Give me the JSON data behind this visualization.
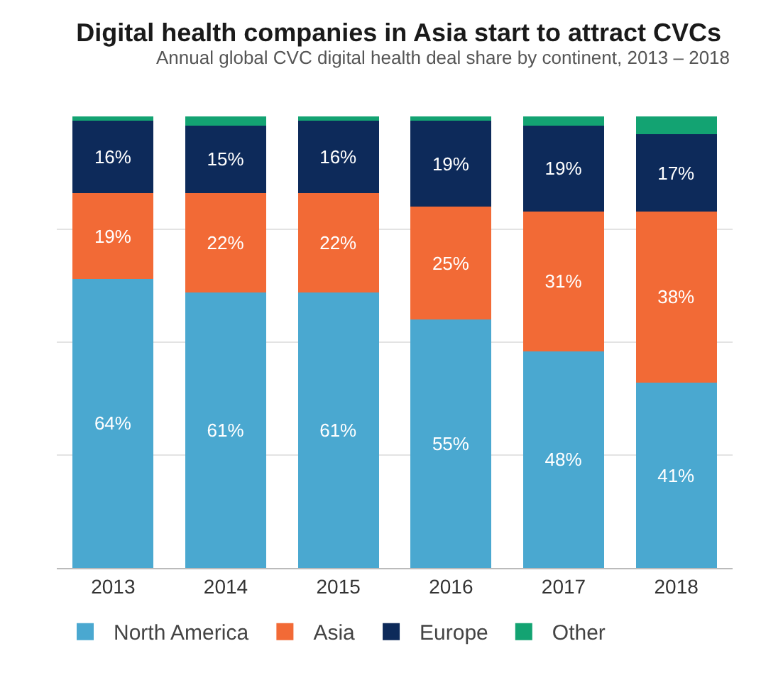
{
  "chart_data": {
    "type": "bar",
    "title": "Digital health companies in Asia start to attract CVCs",
    "subtitle": "Annual global CVC digital health deal share by continent, 2013 – 2018",
    "categories": [
      "2013",
      "2014",
      "2015",
      "2016",
      "2017",
      "2018"
    ],
    "stacked": true,
    "ylim": [
      0,
      100
    ],
    "yticks": [
      {
        "value": 25,
        "label": null
      },
      {
        "value": 50,
        "label": null
      },
      {
        "value": 75,
        "label": null
      }
    ],
    "grid": "y",
    "legend": "bottom",
    "tick_labels": "x",
    "series": [
      {
        "name": "North America",
        "color": "#4aa8d0",
        "values": [
          64,
          61,
          61,
          55,
          48,
          41
        ],
        "value_labels": [
          "64%",
          "61%",
          "61%",
          "55%",
          "48%",
          "41%"
        ]
      },
      {
        "name": "Asia",
        "color": "#f26a36",
        "values": [
          19,
          22,
          22,
          25,
          31,
          38
        ],
        "value_labels": [
          "19%",
          "22%",
          "22%",
          "25%",
          "31%",
          "38%"
        ]
      },
      {
        "name": "Europe",
        "color": "#0d2a5a",
        "values": [
          16,
          15,
          16,
          19,
          19,
          17
        ],
        "value_labels": [
          "16%",
          "15%",
          "16%",
          "19%",
          "19%",
          "17%"
        ]
      },
      {
        "name": "Other",
        "color": "#13a372",
        "values": [
          1,
          2,
          1,
          1,
          2,
          4
        ],
        "value_labels": [
          null,
          null,
          null,
          null,
          null,
          null
        ]
      }
    ]
  }
}
